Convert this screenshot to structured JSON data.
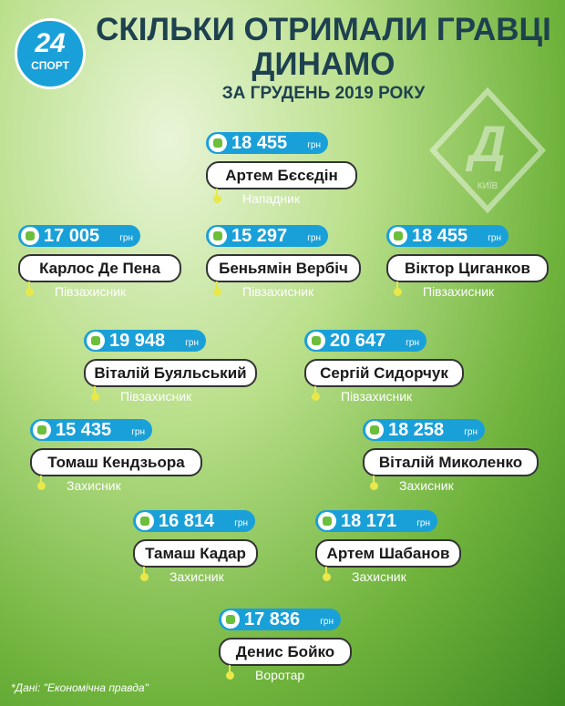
{
  "header": {
    "logo_number": "24",
    "logo_text": "СПОРТ",
    "title": "СКІЛЬКИ ОТРИМАЛИ ГРАВЦІ ДИНАМО",
    "subtitle": "ЗА ГРУДЕНЬ 2019 РОКУ",
    "club_badge": "КИЇВ"
  },
  "players": [
    {
      "salary": "18 455",
      "currency": "грн",
      "name": "Артем Бєсєдін",
      "position": "Нападник"
    },
    {
      "salary": "17 005",
      "currency": "грн",
      "name": "Карлос Де Пена",
      "position": "Півзахисник"
    },
    {
      "salary": "15 297",
      "currency": "грн",
      "name": "Беньямін Вербіч",
      "position": "Півзахисник"
    },
    {
      "salary": "18 455",
      "currency": "грн",
      "name": "Віктор Циганков",
      "position": "Півзахисник"
    },
    {
      "salary": "19 948",
      "currency": "грн",
      "name": "Віталій Буяльський",
      "position": "Півзахисник"
    },
    {
      "salary": "20 647",
      "currency": "грн",
      "name": "Сергій Сидорчук",
      "position": "Півзахисник"
    },
    {
      "salary": "15 435",
      "currency": "грн",
      "name": "Томаш Кендзьора",
      "position": "Захисник"
    },
    {
      "salary": "18 258",
      "currency": "грн",
      "name": "Віталій Миколенко",
      "position": "Захисник"
    },
    {
      "salary": "16 814",
      "currency": "грн",
      "name": "Тамаш Кадар",
      "position": "Захисник"
    },
    {
      "salary": "18 171",
      "currency": "грн",
      "name": "Артем Шабанов",
      "position": "Захисник"
    },
    {
      "salary": "17 836",
      "currency": "грн",
      "name": "Денис Бойко",
      "position": "Воротар"
    }
  ],
  "source": "*Дані: \"Економічна правда\""
}
